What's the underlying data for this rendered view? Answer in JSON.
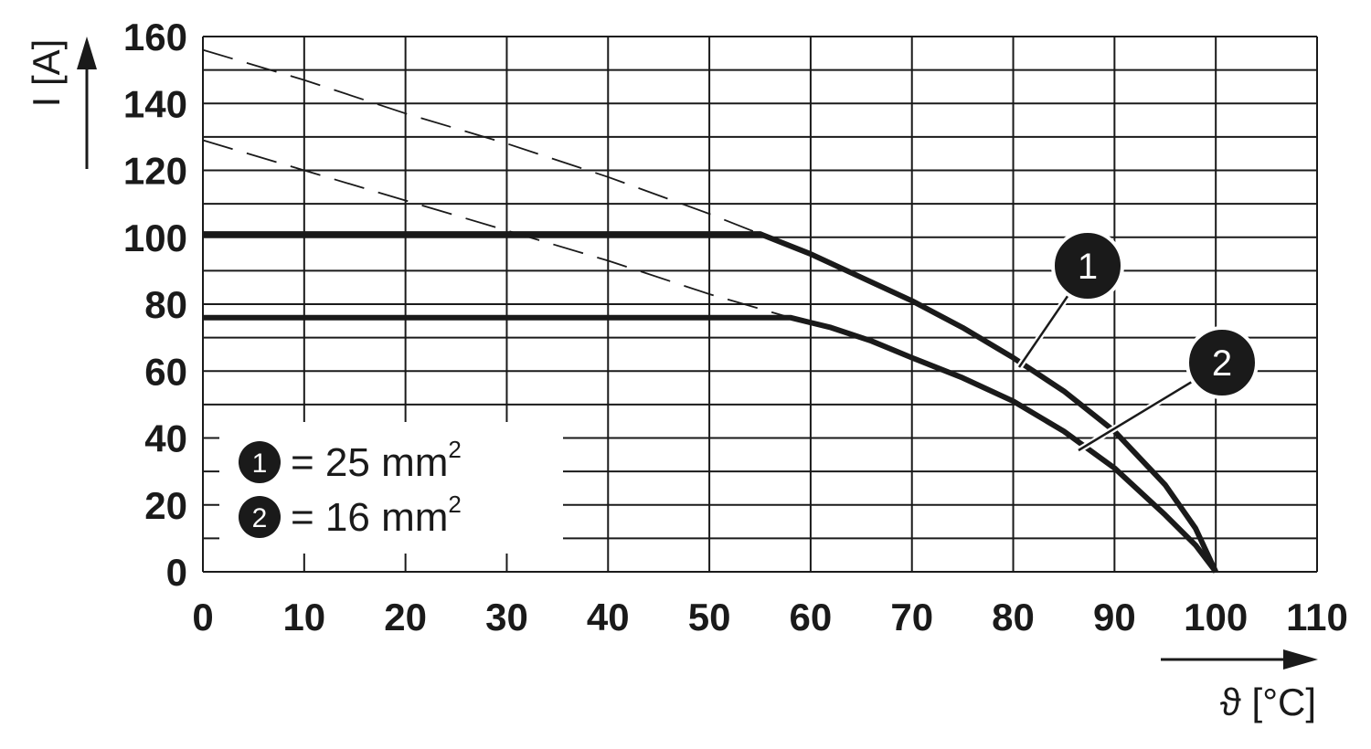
{
  "chart_data": {
    "type": "line",
    "xlabel": "ϑ [°C]",
    "ylabel": "I [A]",
    "xlim": [
      0,
      110
    ],
    "ylim": [
      0,
      160
    ],
    "x_ticks": [
      "0",
      "10",
      "20",
      "30",
      "40",
      "50",
      "60",
      "70",
      "80",
      "90",
      "100",
      "110"
    ],
    "y_ticks": [
      "0",
      "20",
      "40",
      "60",
      "80",
      "100",
      "120",
      "140",
      "160"
    ],
    "x_tick_values": [
      0,
      10,
      20,
      30,
      40,
      50,
      60,
      70,
      80,
      90,
      100,
      110
    ],
    "y_tick_values": [
      0,
      20,
      40,
      60,
      80,
      100,
      120,
      140,
      160
    ],
    "grid": true,
    "series": [
      {
        "id": "1",
        "solid": [
          [
            0,
            101
          ],
          [
            55,
            101
          ],
          [
            60,
            95
          ],
          [
            65,
            88
          ],
          [
            70,
            81
          ],
          [
            75,
            73
          ],
          [
            80,
            64
          ],
          [
            85,
            54
          ],
          [
            90,
            42
          ],
          [
            95,
            26
          ],
          [
            98,
            13
          ],
          [
            100,
            0
          ]
        ],
        "dashed": [
          [
            0,
            156
          ],
          [
            10,
            147
          ],
          [
            20,
            137
          ],
          [
            30,
            128
          ],
          [
            40,
            118
          ],
          [
            50,
            107
          ],
          [
            55,
            101
          ]
        ]
      },
      {
        "id": "2",
        "solid": [
          [
            0,
            76
          ],
          [
            58,
            76
          ],
          [
            62,
            73
          ],
          [
            66,
            69
          ],
          [
            70,
            64
          ],
          [
            75,
            58
          ],
          [
            80,
            51
          ],
          [
            85,
            42
          ],
          [
            90,
            31
          ],
          [
            95,
            17
          ],
          [
            98,
            8
          ],
          [
            100,
            0
          ]
        ],
        "dashed": [
          [
            0,
            129
          ],
          [
            10,
            120
          ],
          [
            20,
            111
          ],
          [
            30,
            102
          ],
          [
            40,
            93
          ],
          [
            50,
            83
          ],
          [
            58,
            76
          ]
        ]
      }
    ],
    "legend": [
      {
        "marker": "1",
        "text": "= 25 mm",
        "sup": "2"
      },
      {
        "marker": "2",
        "text": "= 16 mm",
        "sup": "2"
      }
    ],
    "callouts": [
      {
        "label": "1",
        "anchor": [
          81,
          61
        ]
      },
      {
        "label": "2",
        "anchor": [
          87,
          37
        ]
      }
    ]
  }
}
